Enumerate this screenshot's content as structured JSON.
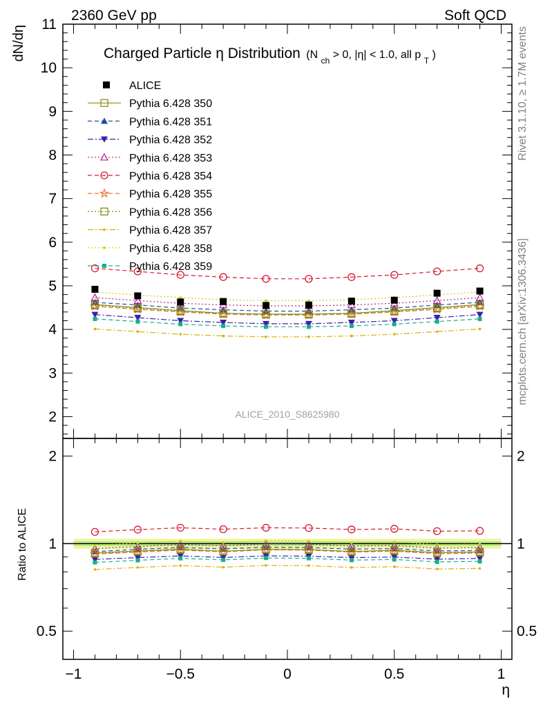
{
  "header": {
    "left": "2360 GeV pp",
    "right": "Soft QCD"
  },
  "side": {
    "rivet": "Rivet 3.1.10, ≥ 1.7M events",
    "mcplots": "mcplots.cern.ch [arXiv:1306.3436]"
  },
  "chart_data": {
    "type": "line",
    "title_main": "Charged Particle η Distribution",
    "title_sub_parts": [
      "(N",
      "ch",
      " > 0, |η| < 1.0, all p",
      "T",
      ")"
    ],
    "ylabel": "dN/dη",
    "ratio_ylabel": "Ratio to ALICE",
    "xlabel": "η",
    "analysis_id": "ALICE_2010_S8625980",
    "xlim": [
      -1.05,
      1.05
    ],
    "ylim": [
      1.5,
      11
    ],
    "ratio_ylim": [
      0.4,
      2.3
    ],
    "ratio_scale": "log",
    "x_ticks": [
      -1,
      -0.5,
      0,
      0.5,
      1
    ],
    "x_tick_labels": [
      "−1",
      "−0.5",
      "0",
      "0.5",
      "1"
    ],
    "y_ticks": [
      2,
      3,
      4,
      5,
      6,
      7,
      8,
      9,
      10,
      11
    ],
    "y_tick_labels": [
      "2",
      "3",
      "4",
      "5",
      "6",
      "7",
      "8",
      "9",
      "10",
      "11"
    ],
    "ratio_ticks": [
      0.5,
      1,
      2
    ],
    "ratio_tick_labels": [
      "0.5",
      "1",
      "2"
    ],
    "x": [
      -0.9,
      -0.7,
      -0.5,
      -0.3,
      -0.1,
      0.1,
      0.3,
      0.5,
      0.7,
      0.9
    ],
    "data": {
      "name": "ALICE",
      "values": [
        4.92,
        4.77,
        4.63,
        4.64,
        4.55,
        4.56,
        4.65,
        4.67,
        4.83,
        4.88
      ]
    },
    "series": [
      {
        "name": "Pythia 6.428 350",
        "color": "#8b8b1a",
        "marker": "square-open",
        "dash": "solid",
        "values": [
          4.57,
          4.5,
          4.43,
          4.37,
          4.35,
          4.35,
          4.37,
          4.43,
          4.5,
          4.57
        ]
      },
      {
        "name": "Pythia 6.428 351",
        "color": "#1d4f9e",
        "marker": "triangle-up",
        "dash": "dash",
        "values": [
          4.62,
          4.56,
          4.49,
          4.45,
          4.42,
          4.42,
          4.45,
          4.49,
          4.56,
          4.62
        ]
      },
      {
        "name": "Pythia 6.428 352",
        "color": "#3b1fb0",
        "marker": "triangle-down",
        "dash": "dashdot",
        "values": [
          4.34,
          4.27,
          4.2,
          4.16,
          4.13,
          4.13,
          4.16,
          4.2,
          4.27,
          4.34
        ]
      },
      {
        "name": "Pythia 6.428 353",
        "color": "#b0208a",
        "marker": "triangle-open",
        "dash": "dot",
        "values": [
          4.73,
          4.66,
          4.6,
          4.56,
          4.54,
          4.54,
          4.56,
          4.6,
          4.66,
          4.73
        ]
      },
      {
        "name": "Pythia 6.428 354",
        "color": "#d8182f",
        "marker": "circle-open",
        "dash": "dash",
        "values": [
          5.4,
          5.33,
          5.25,
          5.2,
          5.16,
          5.16,
          5.2,
          5.25,
          5.33,
          5.4
        ]
      },
      {
        "name": "Pythia 6.428 355",
        "color": "#e86a1a",
        "marker": "star-open",
        "dash": "dash",
        "values": [
          4.53,
          4.46,
          4.4,
          4.35,
          4.33,
          4.33,
          4.35,
          4.4,
          4.46,
          4.53
        ]
      },
      {
        "name": "Pythia 6.428 356",
        "color": "#7a8e12",
        "marker": "square-open",
        "dash": "dot",
        "values": [
          4.55,
          4.48,
          4.41,
          4.36,
          4.34,
          4.34,
          4.36,
          4.41,
          4.48,
          4.55
        ]
      },
      {
        "name": "Pythia 6.428 357",
        "color": "#dcb000",
        "marker": "dot",
        "dash": "dashdot",
        "values": [
          4.01,
          3.95,
          3.89,
          3.85,
          3.83,
          3.83,
          3.85,
          3.89,
          3.95,
          4.01
        ]
      },
      {
        "name": "Pythia 6.428 358",
        "color": "#c8d400",
        "marker": "dot",
        "dash": "dot",
        "values": [
          4.86,
          4.79,
          4.73,
          4.68,
          4.66,
          4.66,
          4.68,
          4.73,
          4.79,
          4.86
        ]
      },
      {
        "name": "Pythia 6.428 359",
        "color": "#1aae8c",
        "marker": "square-small",
        "dash": "dash",
        "values": [
          4.24,
          4.18,
          4.12,
          4.08,
          4.06,
          4.06,
          4.08,
          4.12,
          4.18,
          4.24
        ]
      }
    ],
    "band": {
      "inner": 0.02,
      "outer": 0.04,
      "inner_color": "#b8f08a",
      "outer_color": "#f4f4a4"
    }
  }
}
